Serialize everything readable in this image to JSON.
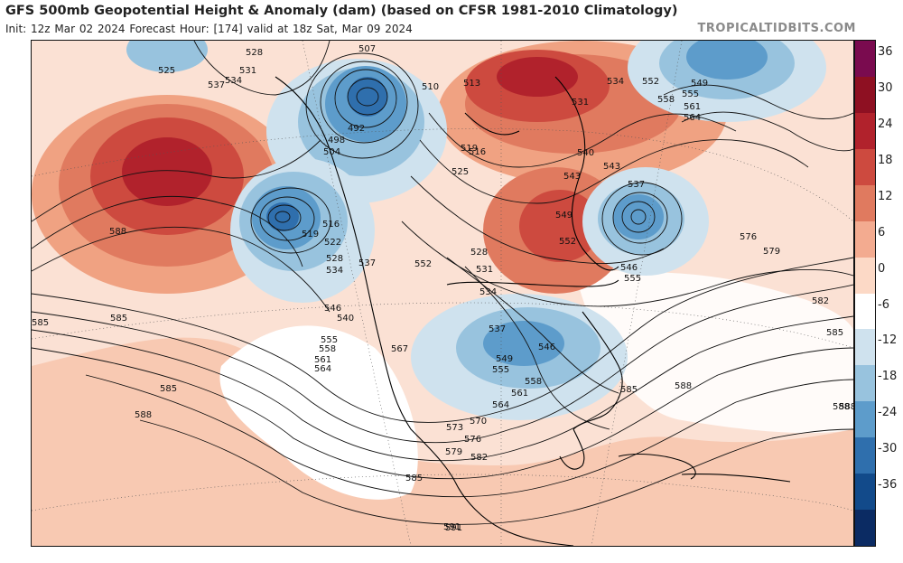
{
  "header": {
    "title": "GFS 500mb Geopotential Height & Anomaly (dam) (based on CFSR 1981-2010 Climatology)",
    "subtitle": "Init: 12z Mar 02 2024   Forecast Hour: [174]   valid at 18z Sat, Mar 09 2024",
    "brand": "TROPICALTIDBITS.COM"
  },
  "colorbar": {
    "ticks": [
      "36",
      "30",
      "24",
      "18",
      "12",
      "6",
      "0",
      "-6",
      "-12",
      "-18",
      "-24",
      "-30",
      "-36"
    ],
    "colors": [
      "#7a0b4f",
      "#8e1022",
      "#b1222c",
      "#cd4a3f",
      "#e07a5f",
      "#f3ab90",
      "#fcd9c6",
      "#ffffff",
      "#cfe2ee",
      "#98c3de",
      "#5d9ccb",
      "#2f6fad",
      "#124a8a",
      "#0b2b63"
    ]
  },
  "map": {
    "contour_labels": [
      "525",
      "528",
      "531",
      "534",
      "537",
      "507",
      "510",
      "513",
      "516",
      "519",
      "492",
      "498",
      "504",
      "525",
      "534",
      "531",
      "552",
      "558",
      "555",
      "549",
      "561",
      "564",
      "543",
      "540",
      "537",
      "543",
      "546",
      "549",
      "552",
      "555",
      "576",
      "579",
      "582",
      "585",
      "588",
      "585",
      "588",
      "585",
      "588",
      "591",
      "573",
      "576",
      "579",
      "582",
      "585",
      "570",
      "564",
      "561",
      "558",
      "555",
      "549",
      "546",
      "537",
      "534",
      "531",
      "528",
      "552",
      "567",
      "564",
      "561",
      "558",
      "555",
      "546",
      "540",
      "537",
      "534",
      "528",
      "522",
      "519",
      "516",
      "588",
      "585",
      "585",
      "588",
      "591"
    ]
  }
}
